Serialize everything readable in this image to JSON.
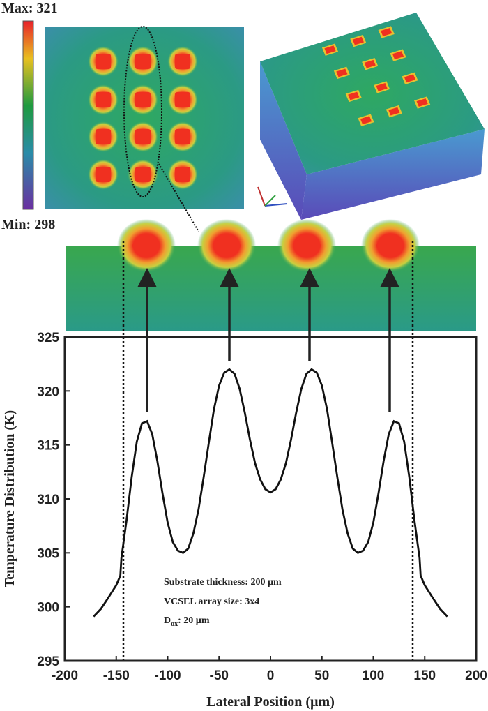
{
  "chart_data": {
    "type": "line",
    "colorbar": {
      "max_label": "Max: 321",
      "min_label": "Min: 298"
    },
    "xlabel": "Lateral Position (µm)",
    "ylabel": "Temperature Distribution (K)",
    "annotations": [
      "Substrate thickness: 200 µm",
      "VCSEL array size: 3x4"
    ],
    "dox_label": {
      "symbol": "D",
      "subscript": "ox",
      "text": ": 20 µm"
    },
    "xlim": [
      -200,
      200
    ],
    "xticks": [
      -200,
      -150,
      -100,
      -50,
      0,
      50,
      100,
      150,
      200
    ],
    "ylim": [
      295,
      325
    ],
    "yticks": [
      295,
      300,
      305,
      310,
      315,
      320,
      325
    ],
    "x": [
      -172,
      -165,
      -158,
      -150,
      -146,
      -145,
      -140,
      -135,
      -130,
      -125,
      -120,
      -115,
      -110,
      -105,
      -100,
      -95,
      -90,
      -85,
      -80,
      -75,
      -70,
      -65,
      -60,
      -55,
      -50,
      -45,
      -40,
      -35,
      -30,
      -25,
      -20,
      -15,
      -10,
      -5,
      0,
      5,
      10,
      15,
      20,
      25,
      30,
      35,
      40,
      45,
      50,
      55,
      60,
      65,
      70,
      75,
      80,
      85,
      90,
      95,
      100,
      105,
      110,
      115,
      120,
      125,
      130,
      135,
      140,
      145,
      146,
      150,
      158,
      165,
      172
    ],
    "series": [
      {
        "color": "#111111",
        "values": [
          299.1,
          299.8,
          300.8,
          302,
          302.9,
          304.5,
          308,
          312,
          315.3,
          317,
          317.2,
          316,
          313.5,
          310.5,
          307.8,
          306,
          305.2,
          305,
          305.4,
          306.8,
          309,
          312,
          315.2,
          318.3,
          320.5,
          321.7,
          322,
          321.6,
          320.2,
          318,
          315.5,
          313.3,
          311.8,
          310.9,
          310.6,
          310.9,
          311.8,
          313.3,
          315.5,
          318,
          320.2,
          321.6,
          322,
          321.7,
          320.5,
          318.3,
          315.2,
          312,
          309,
          306.8,
          305.4,
          305,
          305.2,
          306,
          307.8,
          310.5,
          313.5,
          316,
          317.2,
          317,
          315.3,
          312,
          308,
          304.5,
          302.9,
          302,
          300.8,
          299.8,
          299.1
        ]
      }
    ]
  }
}
